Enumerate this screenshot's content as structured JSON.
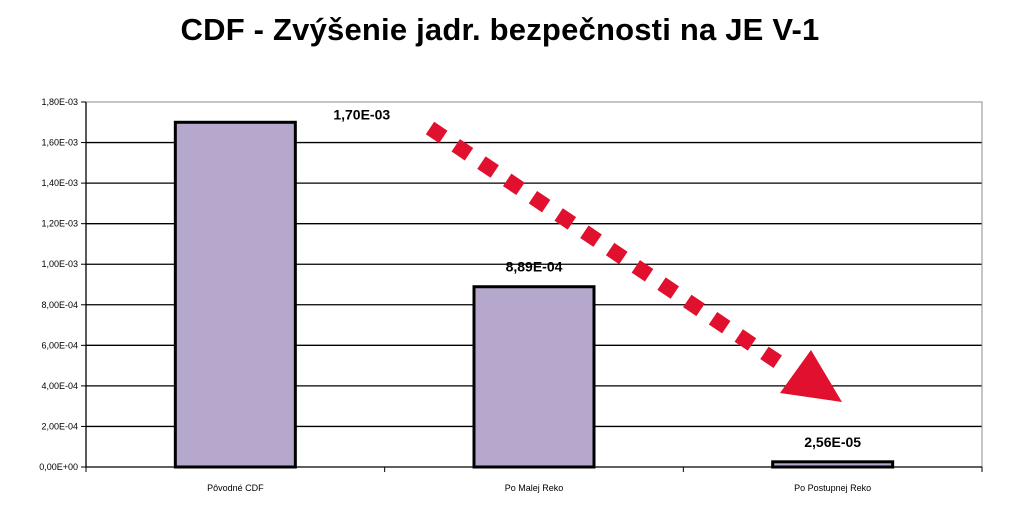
{
  "chart_data": {
    "type": "bar",
    "title": "CDF - Zvýšenie jadr. bezpečnosti na JE V-1",
    "categories": [
      "Pôvodné CDF",
      "Po Malej Reko",
      "Po Postupnej Reko"
    ],
    "values": [
      0.0017,
      0.000889,
      2.56e-05
    ],
    "data_labels": [
      "1,70E-03",
      "8,89E-04",
      "2,56E-05"
    ],
    "y_ticks": [
      0,
      0.0002,
      0.0004,
      0.0006,
      0.0008,
      0.001,
      0.0012,
      0.0014,
      0.0016,
      0.0018
    ],
    "y_tick_labels": [
      "0,00E+00",
      "2,00E-04",
      "4,00E-04",
      "6,00E-04",
      "8,00E-04",
      "1,00E-03",
      "1,20E-03",
      "1,40E-03",
      "1,60E-03",
      "1,80E-03"
    ],
    "ylim": [
      0,
      0.0018
    ],
    "xlabel": "",
    "ylabel": "",
    "grid": true,
    "legend": "none",
    "bar_color": "#b6a8cc",
    "bar_edge_color": "#000000",
    "annotation": {
      "shape": "dotted-arrow",
      "direction": "down-right",
      "color": "#e0102e"
    }
  }
}
